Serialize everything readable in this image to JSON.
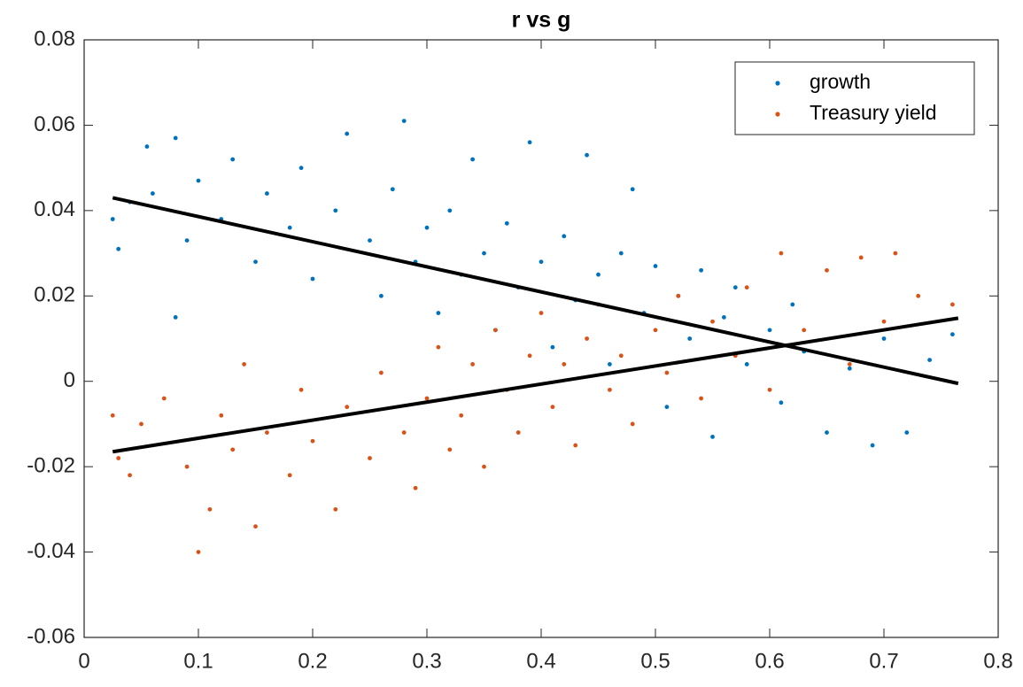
{
  "chart_data": {
    "type": "scatter",
    "title": "r vs g",
    "xlim": [
      0,
      0.8
    ],
    "xticks": [
      0,
      0.1,
      0.2,
      0.3,
      0.4,
      0.5,
      0.6,
      0.7,
      0.8
    ],
    "ylim": [
      -0.06,
      0.08
    ],
    "yticks": [
      -0.06,
      -0.04,
      -0.02,
      0,
      0.02,
      0.04,
      0.06,
      0.08
    ],
    "legend": "upper right",
    "series": [
      {
        "name": "growth",
        "color": "#0072bd",
        "x": [
          0.025,
          0.03,
          0.04,
          0.055,
          0.06,
          0.08,
          0.08,
          0.09,
          0.1,
          0.12,
          0.13,
          0.15,
          0.16,
          0.18,
          0.19,
          0.2,
          0.22,
          0.23,
          0.25,
          0.26,
          0.27,
          0.28,
          0.29,
          0.3,
          0.31,
          0.32,
          0.33,
          0.34,
          0.35,
          0.36,
          0.37,
          0.38,
          0.39,
          0.4,
          0.41,
          0.42,
          0.43,
          0.44,
          0.45,
          0.46,
          0.47,
          0.48,
          0.49,
          0.5,
          0.51,
          0.52,
          0.53,
          0.54,
          0.55,
          0.56,
          0.57,
          0.58,
          0.6,
          0.61,
          0.62,
          0.63,
          0.65,
          0.67,
          0.69,
          0.7,
          0.72,
          0.74,
          0.76
        ],
        "values": [
          0.038,
          0.031,
          0.042,
          0.055,
          0.044,
          0.057,
          0.015,
          0.033,
          0.047,
          0.038,
          0.052,
          0.028,
          0.044,
          0.036,
          0.05,
          0.024,
          0.04,
          0.058,
          0.033,
          0.02,
          0.045,
          0.061,
          0.028,
          0.036,
          0.016,
          0.04,
          0.025,
          0.052,
          0.03,
          0.012,
          0.037,
          0.022,
          0.056,
          0.028,
          0.008,
          0.034,
          0.019,
          0.053,
          0.025,
          0.004,
          0.03,
          0.045,
          0.016,
          0.027,
          -0.006,
          0.02,
          0.01,
          0.026,
          -0.013,
          0.015,
          0.022,
          0.004,
          0.012,
          -0.005,
          0.018,
          0.007,
          -0.012,
          0.003,
          -0.015,
          0.01,
          -0.012,
          0.005,
          0.011
        ]
      },
      {
        "name": "Treasury yield",
        "color": "#d95319",
        "x": [
          0.025,
          0.03,
          0.04,
          0.05,
          0.07,
          0.09,
          0.1,
          0.11,
          0.12,
          0.13,
          0.14,
          0.15,
          0.16,
          0.18,
          0.19,
          0.2,
          0.22,
          0.23,
          0.25,
          0.26,
          0.28,
          0.29,
          0.3,
          0.31,
          0.32,
          0.33,
          0.34,
          0.35,
          0.36,
          0.37,
          0.38,
          0.39,
          0.4,
          0.41,
          0.42,
          0.43,
          0.44,
          0.45,
          0.46,
          0.47,
          0.48,
          0.5,
          0.51,
          0.52,
          0.54,
          0.55,
          0.57,
          0.58,
          0.6,
          0.61,
          0.63,
          0.65,
          0.67,
          0.68,
          0.7,
          0.71,
          0.73,
          0.76
        ],
        "values": [
          -0.008,
          -0.018,
          -0.022,
          -0.01,
          -0.004,
          -0.02,
          -0.04,
          -0.03,
          -0.008,
          -0.016,
          0.004,
          -0.034,
          -0.012,
          -0.022,
          -0.002,
          -0.014,
          -0.03,
          -0.006,
          -0.018,
          0.002,
          -0.012,
          -0.025,
          -0.004,
          0.008,
          -0.016,
          -0.008,
          0.004,
          -0.02,
          0.012,
          -0.002,
          -0.012,
          0.006,
          0.016,
          -0.006,
          0.004,
          -0.015,
          0.01,
          0.018,
          -0.002,
          0.006,
          -0.01,
          0.012,
          0.002,
          0.02,
          -0.004,
          0.014,
          0.006,
          0.022,
          -0.002,
          0.03,
          0.012,
          0.026,
          0.004,
          0.029,
          0.014,
          0.03,
          0.02,
          0.018
        ]
      }
    ],
    "fit_lines": [
      {
        "color": "#000000",
        "x": [
          0.025,
          0.765
        ],
        "values": [
          0.043,
          -0.0005
        ]
      },
      {
        "color": "#000000",
        "x": [
          0.025,
          0.765
        ],
        "values": [
          -0.0165,
          0.0148
        ]
      }
    ]
  }
}
